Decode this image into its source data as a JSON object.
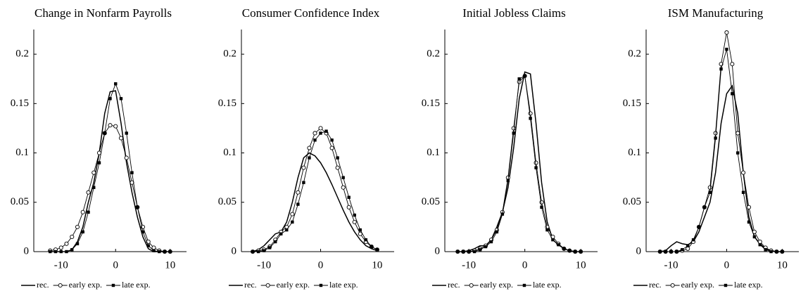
{
  "chart_data": [
    {
      "type": "line",
      "title": "Change in Nonfarm Payrolls",
      "x": [
        -12,
        -11,
        -10,
        -9,
        -8,
        -7,
        -6,
        -5,
        -4,
        -3,
        -2,
        -1,
        0,
        1,
        2,
        3,
        4,
        5,
        6,
        7,
        8,
        9,
        10
      ],
      "series": [
        {
          "name": "rec.",
          "color": "#000000",
          "marker": "none",
          "values": [
            0,
            0,
            0,
            0,
            0.002,
            0.01,
            0.025,
            0.05,
            0.07,
            0.1,
            0.14,
            0.162,
            0.163,
            0.13,
            0.09,
            0.06,
            0.035,
            0.015,
            0.003,
            0,
            0,
            0,
            0
          ]
        },
        {
          "name": "early exp.",
          "color": "#000000",
          "marker": "circle",
          "values": [
            0.001,
            0.002,
            0.004,
            0.008,
            0.015,
            0.025,
            0.04,
            0.06,
            0.08,
            0.1,
            0.12,
            0.128,
            0.127,
            0.115,
            0.095,
            0.07,
            0.045,
            0.025,
            0.01,
            0.004,
            0.001,
            0,
            0
          ]
        },
        {
          "name": "late exp.",
          "color": "#000000",
          "marker": "square",
          "values": [
            0,
            0,
            0,
            0,
            0.002,
            0.008,
            0.02,
            0.04,
            0.065,
            0.09,
            0.12,
            0.155,
            0.17,
            0.155,
            0.12,
            0.08,
            0.045,
            0.02,
            0.006,
            0.001,
            0,
            0,
            0
          ]
        }
      ],
      "xlim": [
        -15,
        13
      ],
      "xticks": [
        -10,
        0,
        10
      ],
      "ylim": [
        0,
        0.225
      ],
      "yticks": [
        0,
        0.05,
        0.1,
        0.15,
        0.2
      ]
    },
    {
      "type": "line",
      "title": "Consumer Confidence Index",
      "x": [
        -12,
        -11,
        -10,
        -9,
        -8,
        -7,
        -6,
        -5,
        -4,
        -3,
        -2,
        -1,
        0,
        1,
        2,
        3,
        4,
        5,
        6,
        7,
        8,
        9,
        10
      ],
      "series": [
        {
          "name": "rec.",
          "color": "#000000",
          "marker": "none",
          "values": [
            0,
            0.002,
            0.006,
            0.012,
            0.018,
            0.02,
            0.03,
            0.05,
            0.075,
            0.095,
            0.1,
            0.097,
            0.09,
            0.08,
            0.068,
            0.055,
            0.042,
            0.03,
            0.02,
            0.012,
            0.006,
            0.003,
            0.001
          ]
        },
        {
          "name": "early exp.",
          "color": "#000000",
          "marker": "circle",
          "values": [
            0,
            0.001,
            0.002,
            0.005,
            0.012,
            0.02,
            0.025,
            0.038,
            0.06,
            0.085,
            0.105,
            0.12,
            0.125,
            0.12,
            0.105,
            0.085,
            0.065,
            0.045,
            0.03,
            0.018,
            0.01,
            0.005,
            0.002
          ]
        },
        {
          "name": "late exp.",
          "color": "#000000",
          "marker": "square",
          "values": [
            0,
            0,
            0.001,
            0.004,
            0.01,
            0.018,
            0.022,
            0.03,
            0.048,
            0.07,
            0.095,
            0.113,
            0.12,
            0.122,
            0.113,
            0.095,
            0.075,
            0.055,
            0.037,
            0.022,
            0.012,
            0.005,
            0.002
          ]
        }
      ],
      "xlim": [
        -14,
        13
      ],
      "xticks": [
        -10,
        0,
        10
      ],
      "ylim": [
        0,
        0.225
      ],
      "yticks": [
        0,
        0.05,
        0.1,
        0.15,
        0.2
      ]
    },
    {
      "type": "line",
      "title": "Initial Jobless Claims",
      "x": [
        -12,
        -11,
        -10,
        -9,
        -8,
        -7,
        -6,
        -5,
        -4,
        -3,
        -2,
        -1,
        0,
        1,
        2,
        3,
        4,
        5,
        6,
        7,
        8,
        9,
        10
      ],
      "series": [
        {
          "name": "rec.",
          "color": "#000000",
          "marker": "none",
          "values": [
            0,
            0,
            0.001,
            0.003,
            0.006,
            0.006,
            0.012,
            0.025,
            0.04,
            0.065,
            0.105,
            0.155,
            0.182,
            0.18,
            0.13,
            0.07,
            0.03,
            0.012,
            0.007,
            0.003,
            0.001,
            0,
            0
          ]
        },
        {
          "name": "early exp.",
          "color": "#000000",
          "marker": "circle",
          "values": [
            0,
            0,
            0,
            0.001,
            0.003,
            0.006,
            0.012,
            0.022,
            0.04,
            0.075,
            0.125,
            0.172,
            0.178,
            0.14,
            0.09,
            0.05,
            0.025,
            0.015,
            0.008,
            0.003,
            0.001,
            0,
            0
          ]
        },
        {
          "name": "late exp.",
          "color": "#000000",
          "marker": "square",
          "values": [
            0,
            0,
            0,
            0,
            0.002,
            0.005,
            0.01,
            0.02,
            0.038,
            0.072,
            0.12,
            0.175,
            0.178,
            0.135,
            0.085,
            0.045,
            0.022,
            0.012,
            0.007,
            0.003,
            0.001,
            0,
            0
          ]
        }
      ],
      "xlim": [
        -14.3,
        13
      ],
      "xticks": [
        -10,
        0,
        10
      ],
      "ylim": [
        0,
        0.225
      ],
      "yticks": [
        0,
        0.05,
        0.1,
        0.15,
        0.2
      ]
    },
    {
      "type": "line",
      "title": "ISM Manufacturing",
      "x": [
        -12,
        -11,
        -10,
        -9,
        -8,
        -7,
        -6,
        -5,
        -4,
        -3,
        -2,
        -1,
        0,
        1,
        2,
        3,
        4,
        5,
        6,
        7,
        8,
        9,
        10
      ],
      "series": [
        {
          "name": "rec.",
          "color": "#000000",
          "marker": "none",
          "values": [
            0,
            0.001,
            0.006,
            0.01,
            0.008,
            0.007,
            0.01,
            0.02,
            0.035,
            0.05,
            0.08,
            0.13,
            0.16,
            0.168,
            0.14,
            0.08,
            0.035,
            0.015,
            0.008,
            0.003,
            0.001,
            0,
            0
          ]
        },
        {
          "name": "early exp.",
          "color": "#000000",
          "marker": "circle",
          "values": [
            0,
            0,
            0,
            0,
            0.001,
            0.003,
            0.01,
            0.025,
            0.045,
            0.065,
            0.12,
            0.19,
            0.222,
            0.19,
            0.12,
            0.08,
            0.045,
            0.02,
            0.01,
            0.004,
            0.001,
            0,
            0
          ]
        },
        {
          "name": "late exp.",
          "color": "#000000",
          "marker": "square",
          "values": [
            0,
            0,
            0,
            0,
            0.002,
            0.006,
            0.012,
            0.025,
            0.045,
            0.06,
            0.115,
            0.185,
            0.205,
            0.16,
            0.1,
            0.06,
            0.03,
            0.015,
            0.007,
            0.002,
            0,
            0,
            0
          ]
        }
      ],
      "xlim": [
        -14.5,
        13
      ],
      "xticks": [
        -10,
        0,
        10
      ],
      "ylim": [
        0,
        0.225
      ],
      "yticks": [
        0,
        0.05,
        0.1,
        0.15,
        0.2
      ]
    }
  ]
}
